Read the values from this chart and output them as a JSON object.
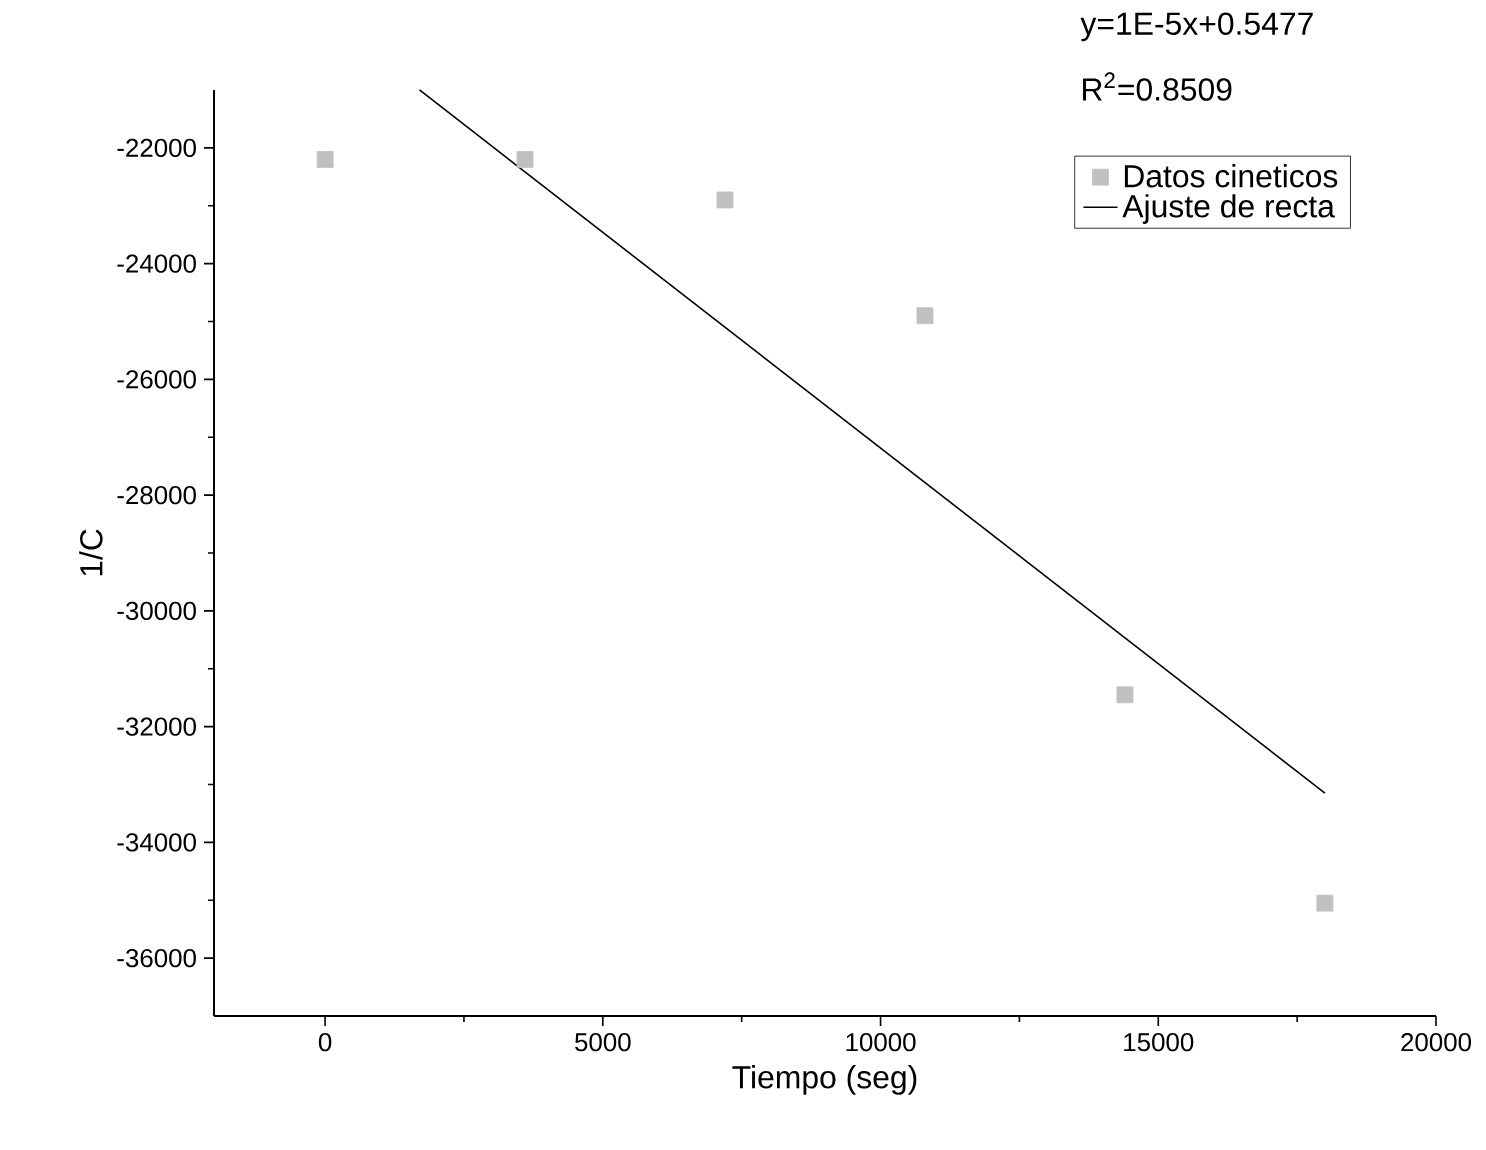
{
  "chart_data": {
    "type": "scatter",
    "xlabel": "Tiempo (seg)",
    "ylabel": "1/C",
    "xlim": [
      -2000,
      20000
    ],
    "xticks": [
      0,
      5000,
      10000,
      15000,
      20000
    ],
    "ylim": [
      -37000,
      -21000
    ],
    "yticks": [
      -36000,
      -34000,
      -32000,
      -30000,
      -28000,
      -26000,
      -24000,
      -22000
    ],
    "legend": "top right",
    "annotations": [
      "y=1E-5x+0.5477",
      "R$^{2}$=0.8509"
    ],
    "series": [
      {
        "name": "Datos cineticos",
        "marker": "square",
        "color": "#c0c0c0",
        "x": [
          0,
          3600,
          7200,
          10800,
          14400,
          18000
        ],
        "values": [
          -22200,
          -22200,
          -22900,
          -24900,
          -31450,
          -35050
        ]
      },
      {
        "name": "Ajuste de recta",
        "type": "line",
        "marker": "none",
        "line_style": "solid",
        "color": "#000000",
        "x": [
          1700,
          18000
        ],
        "values": [
          -21000,
          -33150
        ]
      }
    ]
  }
}
